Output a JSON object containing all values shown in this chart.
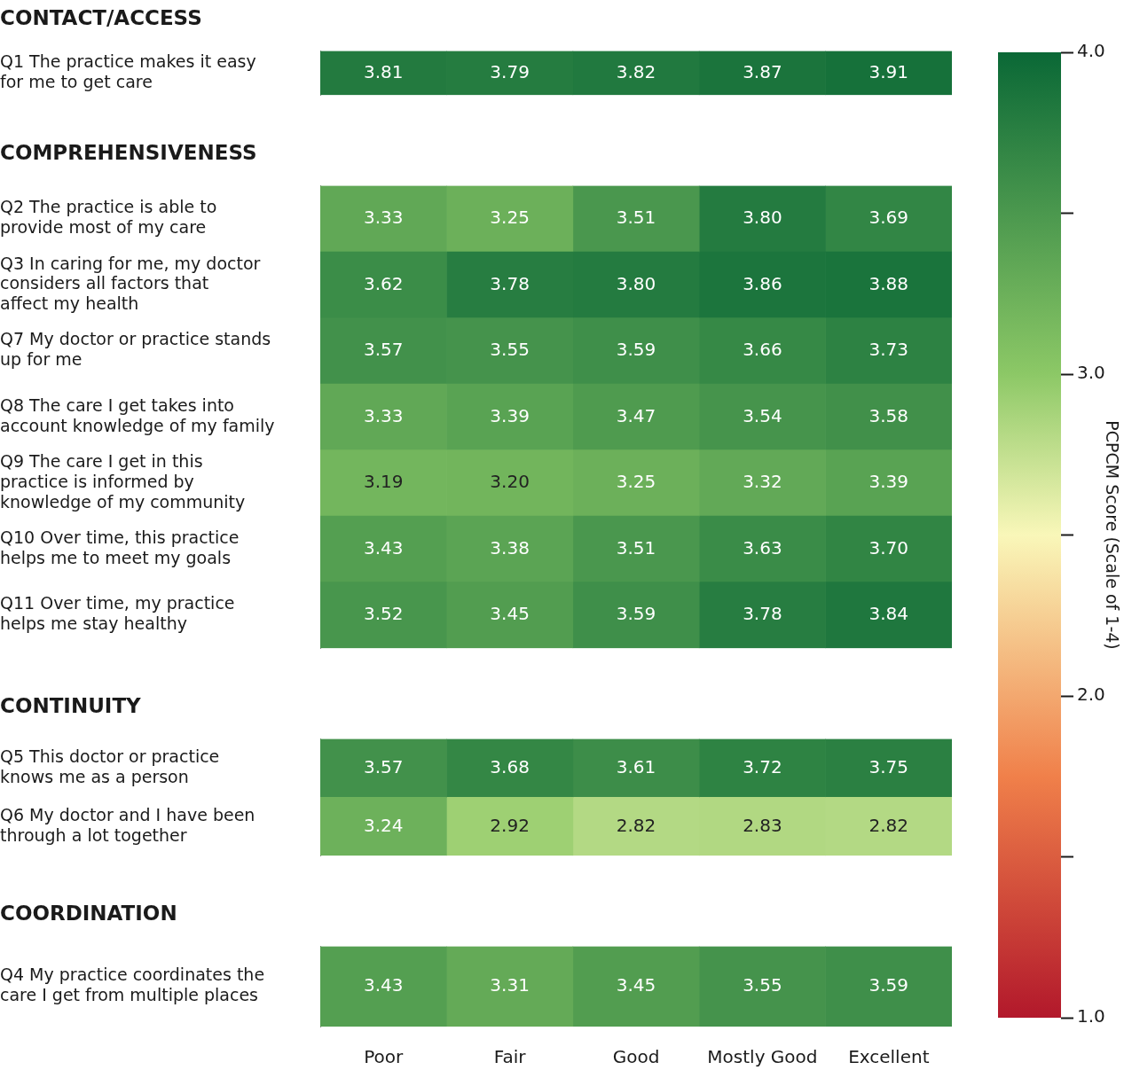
{
  "chart_data": [
    {
      "type": "heatmap",
      "title": "CONTACT/ACCESS",
      "categories": [
        null,
        null,
        null,
        null,
        null
      ],
      "y_categories": [
        "Q1 The practice makes it easy for me to get care"
      ],
      "cells": [
        [
          3.81,
          3.79,
          3.82,
          3.87,
          3.91
        ]
      ],
      "clim": [
        1,
        4
      ],
      "cticks": [
        {
          "value": 1,
          "label": "1.0"
        },
        {
          "value": 1.5,
          "label": null
        },
        {
          "value": 2,
          "label": "2.0"
        },
        {
          "value": 2.5,
          "label": null
        },
        {
          "value": 3,
          "label": "3.0"
        },
        {
          "value": 3.5,
          "label": null
        },
        {
          "value": 4,
          "label": "4.0"
        }
      ],
      "clabel": "PCPCM Score (Scale of 1-4)",
      "data_labels": true,
      "tick_labels": "y"
    },
    {
      "type": "heatmap",
      "title": "COMPREHENSIVENESS",
      "categories": [
        null,
        null,
        null,
        null,
        null
      ],
      "y_categories": [
        "Q2 The practice is able to provide most of my care",
        "Q3 In caring for me, my doctor considers all factors that affect my health",
        "Q7 My doctor or practice stands up for me",
        "Q8 The care I get takes into account knowledge of my family",
        "Q9 The care I get in this practice is informed by knowledge of my community",
        "Q10 Over time, this practice helps me to meet my goals",
        "Q11 Over time, my practice helps me stay healthy"
      ],
      "cells": [
        [
          3.33,
          3.25,
          3.51,
          3.8,
          3.69
        ],
        [
          3.62,
          3.78,
          3.8,
          3.86,
          3.88
        ],
        [
          3.57,
          3.55,
          3.59,
          3.66,
          3.73
        ],
        [
          3.33,
          3.39,
          3.47,
          3.54,
          3.58
        ],
        [
          3.19,
          3.2,
          3.25,
          3.32,
          3.39
        ],
        [
          3.43,
          3.38,
          3.51,
          3.63,
          3.7
        ],
        [
          3.52,
          3.45,
          3.59,
          3.78,
          3.84
        ]
      ],
      "cell_labels": [
        [
          "3.33",
          "3.25",
          "3.51",
          "3.80",
          "3.69"
        ],
        [
          "3.62",
          "3.78",
          "3.80",
          "3.86",
          "3.88"
        ],
        [
          "3.57",
          "3.55",
          "3.59",
          "3.66",
          "3.73"
        ],
        [
          "3.33",
          "3.39",
          "3.47",
          "3.54",
          "3.58"
        ],
        [
          "3.19",
          "3.20",
          "3.25",
          "3.32",
          "3.39"
        ],
        [
          "3.43",
          "3.38",
          "3.51",
          "3.63",
          "3.70"
        ],
        [
          "3.52",
          "3.45",
          "3.59",
          "3.78",
          "3.84"
        ]
      ],
      "data_labels": true,
      "tick_labels": "y"
    },
    {
      "type": "heatmap",
      "title": "CONTINUITY",
      "categories": [
        null,
        null,
        null,
        null,
        null
      ],
      "y_categories": [
        "Q5 This doctor or practice knows me as a person",
        "Q6 My doctor and I have been through a lot together"
      ],
      "cells": [
        [
          3.57,
          3.68,
          3.61,
          3.72,
          3.75
        ],
        [
          3.24,
          2.92,
          2.82,
          2.83,
          2.82
        ]
      ],
      "data_labels": true,
      "tick_labels": "y"
    },
    {
      "type": "heatmap",
      "title": "COORDINATION",
      "categories": [
        "Poor",
        "Fair",
        "Good",
        "Mostly Good",
        "Excellent"
      ],
      "y_categories": [
        "Q4 My practice coordinates the care I get from multiple places"
      ],
      "cells": [
        [
          3.43,
          3.31,
          3.45,
          3.55,
          3.59
        ]
      ],
      "data_labels": true
    }
  ]
}
